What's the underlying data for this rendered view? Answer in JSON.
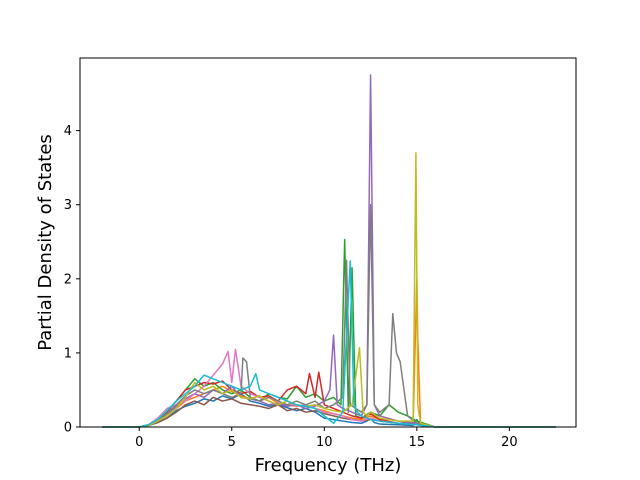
{
  "chart_data": {
    "type": "line",
    "xlabel": "Frequency (THz)",
    "ylabel": "Partial Density of States",
    "xlim": [
      -3.2,
      23.6
    ],
    "ylim": [
      0,
      4.98
    ],
    "xticks": [
      0,
      5,
      10,
      15,
      20
    ],
    "yticks": [
      0,
      1,
      2,
      3,
      4
    ],
    "xtick_labels": [
      "0",
      "5",
      "10",
      "15",
      "20"
    ],
    "ytick_labels": [
      "0",
      "1",
      "2",
      "3",
      "4"
    ],
    "grid": false,
    "legend": "none",
    "series": [
      {
        "color": "#1f77b4",
        "x": [
          -2,
          0,
          0.5,
          1,
          1.5,
          2,
          2.5,
          3,
          3.5,
          4,
          4.5,
          5,
          5.5,
          6,
          6.5,
          7,
          7.5,
          8,
          8.5,
          9,
          9.5,
          10,
          10.5,
          11,
          11.5,
          12,
          12.3,
          12.5,
          12.7,
          13,
          14,
          14.8,
          15,
          15.2,
          16,
          22.5
        ],
        "y": [
          0,
          0,
          0.02,
          0.06,
          0.12,
          0.22,
          0.28,
          0.32,
          0.38,
          0.35,
          0.42,
          0.38,
          0.45,
          0.35,
          0.32,
          0.28,
          0.3,
          0.26,
          0.22,
          0.25,
          0.2,
          0.12,
          0.1,
          0.08,
          0.06,
          0.05,
          0.08,
          0.12,
          0.06,
          0.04,
          0.03,
          0.02,
          0.1,
          0.02,
          0,
          0
        ]
      },
      {
        "color": "#ff7f0e",
        "x": [
          -2,
          0,
          0.5,
          1,
          1.5,
          2,
          2.5,
          3,
          3.5,
          4,
          4.5,
          5,
          5.5,
          6,
          6.5,
          7,
          7.5,
          8,
          8.5,
          9,
          9.5,
          10,
          10.5,
          11,
          11.5,
          12,
          12.5,
          13,
          14,
          14.8,
          14.95,
          15,
          15.05,
          15.2,
          16,
          22.5
        ],
        "y": [
          0,
          0,
          0.02,
          0.08,
          0.15,
          0.25,
          0.35,
          0.4,
          0.45,
          0.5,
          0.55,
          0.48,
          0.42,
          0.38,
          0.35,
          0.4,
          0.32,
          0.3,
          0.28,
          0.3,
          0.25,
          0.22,
          0.18,
          0.15,
          0.12,
          0.1,
          0.15,
          0.1,
          0.05,
          0.05,
          1.5,
          2.0,
          1.2,
          0.05,
          0,
          0
        ]
      },
      {
        "color": "#2ca02c",
        "x": [
          -2,
          0,
          0.5,
          1,
          1.5,
          2,
          2.5,
          3,
          3.5,
          4,
          4.5,
          5,
          5.5,
          6,
          6.5,
          7,
          7.5,
          8,
          8.5,
          9,
          9.5,
          10,
          10.5,
          10.9,
          11.1,
          11.3,
          11.5,
          11.7,
          12,
          12.5,
          13,
          13.5,
          14,
          14.5,
          15,
          16,
          22.5
        ],
        "y": [
          0,
          0,
          0.03,
          0.1,
          0.2,
          0.35,
          0.5,
          0.65,
          0.55,
          0.6,
          0.5,
          0.45,
          0.5,
          0.4,
          0.35,
          0.45,
          0.4,
          0.38,
          0.55,
          0.4,
          0.45,
          0.35,
          0.4,
          0.3,
          2.53,
          0.2,
          2.15,
          0.15,
          0.12,
          0.2,
          0.15,
          0.3,
          0.2,
          0.15,
          0.08,
          0,
          0
        ]
      },
      {
        "color": "#d62728",
        "x": [
          -2,
          0,
          0.5,
          1,
          1.5,
          2,
          2.5,
          3,
          3.5,
          4,
          4.5,
          5,
          5.5,
          6,
          6.5,
          7,
          7.5,
          8,
          8.5,
          9,
          9.2,
          9.5,
          9.7,
          10,
          10.5,
          11,
          11.5,
          12,
          12.5,
          13,
          14,
          15,
          16,
          22.5
        ],
        "y": [
          0,
          0,
          0.03,
          0.1,
          0.2,
          0.35,
          0.5,
          0.55,
          0.6,
          0.58,
          0.62,
          0.5,
          0.45,
          0.48,
          0.4,
          0.42,
          0.35,
          0.5,
          0.55,
          0.45,
          0.72,
          0.4,
          0.74,
          0.3,
          0.25,
          0.2,
          0.15,
          0.12,
          0.18,
          0.1,
          0.05,
          0.05,
          0,
          0
        ]
      },
      {
        "color": "#9467bd",
        "x": [
          -2,
          0,
          0.5,
          1,
          1.5,
          2,
          2.5,
          3,
          3.5,
          4,
          4.5,
          5,
          5.5,
          6,
          6.5,
          7,
          7.5,
          8,
          8.5,
          9,
          9.5,
          10,
          10.3,
          10.5,
          10.7,
          11,
          11.5,
          12,
          12.3,
          12.5,
          12.7,
          13,
          14,
          15,
          16,
          22.5
        ],
        "y": [
          0,
          0,
          0.02,
          0.08,
          0.15,
          0.28,
          0.38,
          0.45,
          0.4,
          0.5,
          0.45,
          0.55,
          0.4,
          0.38,
          0.35,
          0.3,
          0.32,
          0.28,
          0.3,
          0.25,
          0.28,
          0.35,
          0.5,
          1.24,
          0.3,
          0.25,
          0.2,
          0.15,
          0.3,
          4.75,
          0.3,
          0.15,
          0.08,
          0.05,
          0,
          0
        ]
      },
      {
        "color": "#8c564b",
        "x": [
          -2,
          0,
          0.5,
          1,
          1.5,
          2,
          2.5,
          3,
          3.5,
          4,
          4.5,
          5,
          5.5,
          6,
          6.5,
          7,
          7.5,
          8,
          8.5,
          9,
          9.5,
          10,
          10.5,
          11,
          11.5,
          12,
          12.5,
          13,
          14,
          15,
          16,
          22.5
        ],
        "y": [
          0,
          0,
          0.02,
          0.06,
          0.12,
          0.2,
          0.3,
          0.35,
          0.3,
          0.4,
          0.35,
          0.38,
          0.32,
          0.3,
          0.28,
          0.25,
          0.3,
          0.22,
          0.25,
          0.2,
          0.22,
          0.18,
          0.15,
          0.12,
          0.1,
          0.08,
          0.1,
          0.08,
          0.05,
          0.03,
          0,
          0
        ]
      },
      {
        "color": "#e377c2",
        "x": [
          -2,
          0,
          0.5,
          1,
          1.5,
          2,
          2.5,
          3,
          3.5,
          4,
          4.5,
          4.8,
          5,
          5.2,
          5.5,
          6,
          6.5,
          7,
          7.5,
          8,
          8.5,
          9,
          9.5,
          10,
          10.5,
          11,
          11.5,
          12,
          12.5,
          13,
          14,
          15,
          16,
          22.5
        ],
        "y": [
          0,
          0,
          0.03,
          0.12,
          0.25,
          0.3,
          0.35,
          0.45,
          0.55,
          0.7,
          0.85,
          1.02,
          0.6,
          1.05,
          0.55,
          0.45,
          0.4,
          0.35,
          0.3,
          0.35,
          0.28,
          0.3,
          0.25,
          0.2,
          0.18,
          0.15,
          0.1,
          0.08,
          0.12,
          0.08,
          0.05,
          0.03,
          0,
          0
        ]
      },
      {
        "color": "#7f7f7f",
        "x": [
          -2,
          0,
          0.5,
          1,
          1.5,
          2,
          2.5,
          3,
          3.5,
          4,
          4.5,
          5,
          5.5,
          5.6,
          5.8,
          6,
          6.5,
          7,
          7.5,
          8,
          8.5,
          9,
          9.5,
          10,
          10.5,
          11,
          11.2,
          11.4,
          12,
          12.3,
          12.5,
          12.7,
          13,
          13.5,
          13.7,
          13.9,
          14.1,
          14.5,
          15,
          16,
          22.5
        ],
        "y": [
          0,
          0,
          0.02,
          0.08,
          0.18,
          0.3,
          0.42,
          0.5,
          0.45,
          0.5,
          0.45,
          0.4,
          0.45,
          0.93,
          0.88,
          0.4,
          0.35,
          0.4,
          0.35,
          0.3,
          0.35,
          0.3,
          0.35,
          0.25,
          0.3,
          0.4,
          2.25,
          0.3,
          0.2,
          0.3,
          3.0,
          0.3,
          0.2,
          0.3,
          1.53,
          1.0,
          0.88,
          0.15,
          0.05,
          0,
          0
        ]
      },
      {
        "color": "#bcbd22",
        "x": [
          -2,
          0,
          0.5,
          1,
          1.5,
          2,
          2.5,
          3,
          3.5,
          4,
          4.5,
          5,
          5.5,
          6,
          6.5,
          7,
          7.5,
          8,
          8.5,
          9,
          9.5,
          10,
          10.5,
          11,
          11.5,
          11.9,
          12.1,
          12.3,
          12.5,
          13,
          14,
          14.8,
          14.95,
          15.05,
          15.2,
          16,
          22.5
        ],
        "y": [
          0,
          0,
          0.02,
          0.08,
          0.15,
          0.25,
          0.4,
          0.6,
          0.5,
          0.55,
          0.45,
          0.5,
          0.4,
          0.38,
          0.42,
          0.35,
          0.3,
          0.35,
          0.3,
          0.28,
          0.3,
          0.25,
          0.22,
          0.2,
          0.3,
          1.07,
          0.2,
          0.15,
          0.2,
          0.12,
          0.08,
          0.08,
          3.7,
          0.3,
          0.05,
          0,
          0
        ]
      },
      {
        "color": "#17becf",
        "x": [
          -2,
          0,
          0.5,
          1,
          1.5,
          2,
          2.5,
          3,
          3.5,
          4,
          4.5,
          5,
          5.5,
          6,
          6.3,
          6.5,
          7,
          7.5,
          8,
          8.5,
          9,
          9.5,
          10,
          10.5,
          11,
          11.4,
          11.6,
          11.8,
          12,
          12.5,
          13,
          14,
          15,
          16,
          22.5
        ],
        "y": [
          0,
          0,
          0.03,
          0.1,
          0.22,
          0.35,
          0.45,
          0.55,
          0.7,
          0.65,
          0.6,
          0.55,
          0.5,
          0.55,
          0.72,
          0.5,
          0.45,
          0.4,
          0.35,
          0.3,
          0.28,
          0.25,
          0.15,
          0.05,
          0.2,
          2.24,
          0.3,
          0.2,
          0.15,
          0.1,
          0.08,
          0.05,
          0.03,
          0,
          0
        ]
      }
    ]
  }
}
